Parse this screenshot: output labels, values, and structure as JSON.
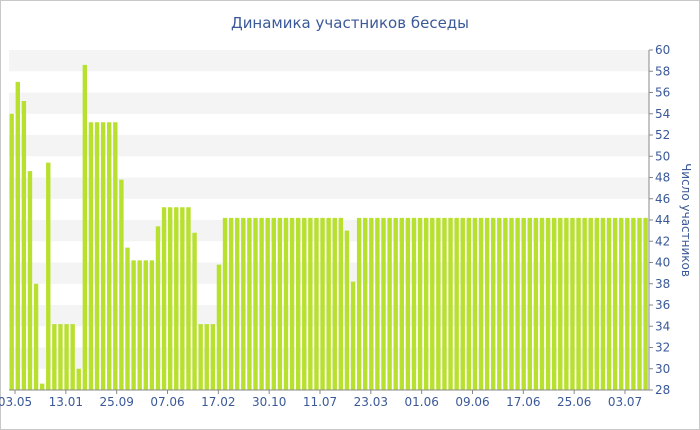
{
  "chart_data": {
    "type": "bar",
    "title": "Динамика участников беседы",
    "ylabel": "Число участников",
    "xlabel": "",
    "ylim": [
      28,
      60
    ],
    "yticks": [
      28,
      30,
      32,
      34,
      36,
      38,
      40,
      42,
      44,
      46,
      48,
      50,
      52,
      54,
      56,
      58,
      60
    ],
    "xtick_labels": [
      "03.05",
      "13.01",
      "25.09",
      "07.06",
      "17.02",
      "30.10",
      "11.07",
      "23.03",
      "01.06",
      "09.06",
      "17.06",
      "25.06",
      "03.07"
    ],
    "grid": "horizontal-bands",
    "bar_color": "#b8e02e",
    "values": [
      54,
      57,
      55.2,
      48.6,
      38,
      28.6,
      49.4,
      34.2,
      34.2,
      34.2,
      34.2,
      30,
      58.6,
      53.2,
      53.2,
      53.2,
      53.2,
      53.2,
      47.8,
      41.4,
      40.2,
      40.2,
      40.2,
      40.2,
      43.4,
      45.2,
      45.2,
      45.2,
      45.2,
      45.2,
      42.8,
      34.2,
      34.2,
      34.2,
      39.8,
      44.2,
      44.2,
      44.2,
      44.2,
      44.2,
      44.2,
      44.2,
      44.2,
      44.2,
      44.2,
      44.2,
      44.2,
      44.2,
      44.2,
      44.2,
      44.2,
      44.2,
      44.2,
      44.2,
      44.2,
      43,
      38.2,
      44.2,
      44.2,
      44.2,
      44.2,
      44.2,
      44.2,
      44.2,
      44.2,
      44.2,
      44.2,
      44.2,
      44.2,
      44.2,
      44.2,
      44.2,
      44.2,
      44.2,
      44.2,
      44.2,
      44.2,
      44.2,
      44.2,
      44.2,
      44.2,
      44.2,
      44.2,
      44.2,
      44.2,
      44.2,
      44.2,
      44.2,
      44.2,
      44.2,
      44.2,
      44.2,
      44.2,
      44.2,
      44.2,
      44.2,
      44.2,
      44.2,
      44.2,
      44.2,
      44.2,
      44.2,
      44.2,
      44.2,
      44.2
    ]
  }
}
